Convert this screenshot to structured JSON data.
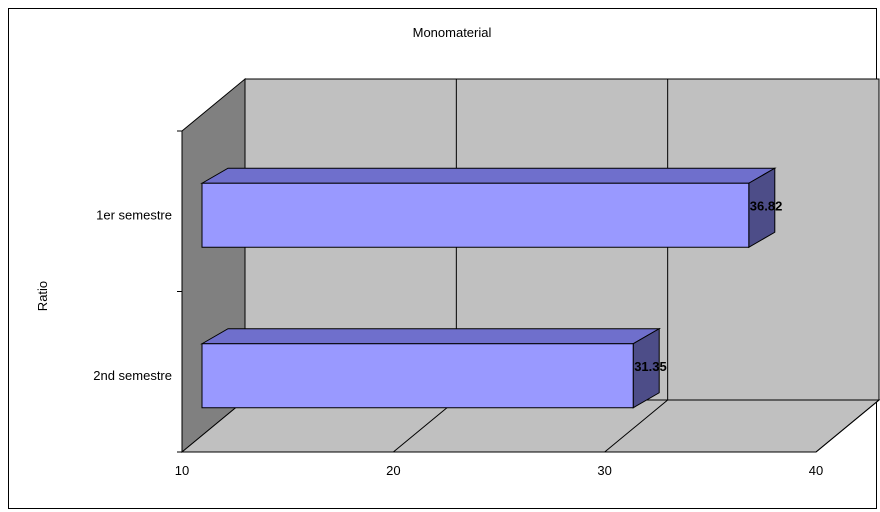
{
  "chart_data": {
    "type": "bar",
    "orientation": "horizontal",
    "style": "3d",
    "title": "Monomaterial",
    "ylabel": "Ratio",
    "xlabel": "",
    "categories": [
      "1er semestre",
      "2nd semestre"
    ],
    "values": [
      36.82,
      31.35
    ],
    "data_labels": [
      "36.82",
      "31.35"
    ],
    "xlim": [
      10,
      40
    ],
    "xticks": [
      "10",
      "20",
      "30",
      "40"
    ],
    "grid": true,
    "legend": "none",
    "colors": {
      "bar_front": "#9999ff",
      "bar_top": "#6f6fcc",
      "bar_side": "#4d4d88",
      "back_wall": "#c0c0c0",
      "side_wall": "#808080",
      "floor": "#c0c0c0"
    }
  }
}
